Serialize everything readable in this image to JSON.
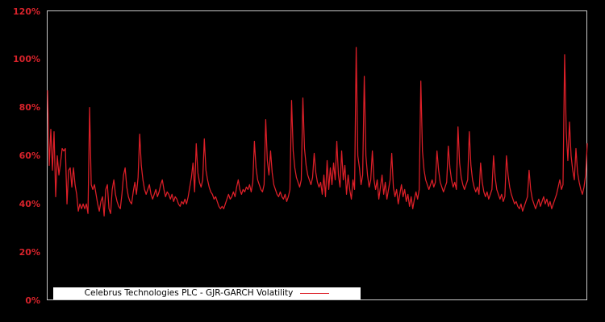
{
  "figure": {
    "background": "#000000",
    "frame_color": "#c9c9c9"
  },
  "legend": {
    "label": "Celebrus Technologies PLC - GJR-GARCH Volatility",
    "background": "#ffffff",
    "text_color": "#000000",
    "sample_line_color": "#dd1f28"
  },
  "y_axis": {
    "tick_labels": [
      "120%",
      "100%",
      "80%",
      "60%",
      "40%",
      "20%",
      "0%"
    ],
    "tick_values": [
      120,
      100,
      80,
      60,
      40,
      20,
      0
    ],
    "tick_color": "#d8232b"
  },
  "chart_data": {
    "type": "line",
    "title": "Celebrus Technologies PLC - GJR-GARCH Volatility",
    "xlabel": "",
    "ylabel": "",
    "x_tick_labels_visible": false,
    "ylim": [
      0,
      120
    ],
    "y_tick_step": 20,
    "y_unit": "%",
    "grid": false,
    "legend_position": "bottom-left",
    "background": "#000000",
    "line_color": "#dd1f28",
    "series": [
      {
        "name": "Celebrus Technologies PLC - GJR-GARCH Volatility",
        "unit": "percent annualized volatility",
        "values": [
          87,
          56,
          71,
          54,
          70,
          43,
          60,
          52,
          57,
          63,
          62,
          63,
          40,
          54,
          55,
          47,
          55,
          48,
          44,
          37,
          40,
          38,
          40,
          38,
          40,
          36,
          80,
          48,
          46,
          48,
          44,
          40,
          37,
          41,
          43,
          35,
          46,
          48,
          38,
          36,
          46,
          50,
          44,
          41,
          39,
          38,
          44,
          52,
          55,
          47,
          43,
          41,
          40,
          45,
          49,
          44,
          51,
          69,
          56,
          50,
          46,
          44,
          46,
          48,
          44,
          42,
          44,
          46,
          43,
          45,
          48,
          50,
          46,
          43,
          45,
          44,
          42,
          44,
          41,
          43,
          42,
          40,
          39,
          41,
          40,
          42,
          40,
          43,
          47,
          51,
          57,
          45,
          65,
          53,
          49,
          47,
          50,
          67,
          54,
          50,
          47,
          45,
          44,
          42,
          43,
          41,
          39,
          38,
          39,
          38,
          40,
          42,
          44,
          42,
          43,
          45,
          43,
          47,
          50,
          46,
          44,
          46,
          45,
          47,
          46,
          48,
          45,
          49,
          66,
          55,
          50,
          48,
          46,
          45,
          48,
          75,
          58,
          52,
          62,
          53,
          48,
          46,
          44,
          43,
          45,
          43,
          42,
          44,
          41,
          43,
          46,
          83,
          62,
          55,
          51,
          49,
          47,
          50,
          84,
          63,
          56,
          52,
          50,
          48,
          51,
          61,
          53,
          49,
          47,
          49,
          44,
          52,
          43,
          58,
          46,
          55,
          48,
          57,
          50,
          66,
          52,
          47,
          62,
          50,
          56,
          44,
          52,
          46,
          42,
          50,
          46,
          105,
          60,
          55,
          48,
          52,
          93,
          60,
          52,
          47,
          50,
          62,
          50,
          46,
          50,
          42,
          47,
          52,
          44,
          49,
          42,
          46,
          50,
          61,
          47,
          43,
          46,
          40,
          44,
          48,
          43,
          46,
          41,
          44,
          39,
          43,
          38,
          42,
          45,
          42,
          46,
          91,
          62,
          54,
          50,
          48,
          46,
          48,
          50,
          47,
          49,
          62,
          54,
          49,
          47,
          45,
          47,
          49,
          64,
          55,
          50,
          47,
          49,
          46,
          72,
          57,
          51,
          48,
          46,
          48,
          50,
          70,
          56,
          50,
          47,
          45,
          47,
          44,
          57,
          49,
          45,
          43,
          45,
          42,
          44,
          46,
          60,
          51,
          46,
          44,
          42,
          44,
          41,
          43,
          60,
          52,
          47,
          44,
          42,
          40,
          41,
          39,
          38,
          40,
          37,
          39,
          41,
          43,
          54,
          46,
          42,
          40,
          38,
          40,
          42,
          39,
          41,
          43,
          40,
          42,
          39,
          41,
          38,
          40,
          42,
          44,
          47,
          50,
          46,
          48,
          102,
          70,
          58,
          74,
          60,
          54,
          50,
          63,
          53,
          49,
          46,
          44,
          47,
          52,
          65
        ]
      }
    ]
  }
}
